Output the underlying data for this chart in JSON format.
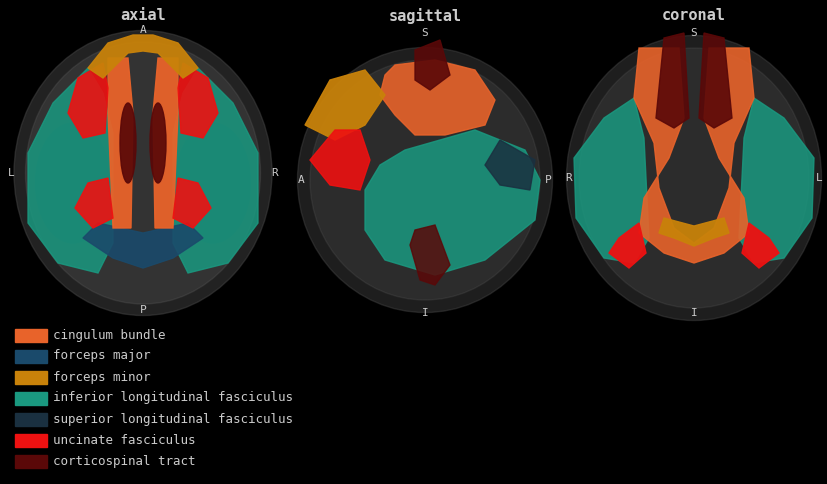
{
  "background_color": "#000000",
  "title_color": "#cccccc",
  "label_color": "#cccccc",
  "titles": [
    "axial",
    "sagittal",
    "coronal"
  ],
  "legend_items": [
    {
      "label": "cingulum bundle",
      "color": "#e8632a"
    },
    {
      "label": "forceps major",
      "color": "#1a4a6b"
    },
    {
      "label": "forceps minor",
      "color": "#c8820a"
    },
    {
      "label": "inferior longitudinal fasciculus",
      "color": "#1a9980"
    },
    {
      "label": "superior longitudinal fasciculus",
      "color": "#1a3040"
    },
    {
      "label": "uncinate fasciculus",
      "color": "#ee1111"
    },
    {
      "label": "corticospinal tract",
      "color": "#5a0808"
    }
  ],
  "font_family": "monospace",
  "title_fontsize": 11,
  "label_fontsize": 9,
  "legend_fontsize": 9
}
